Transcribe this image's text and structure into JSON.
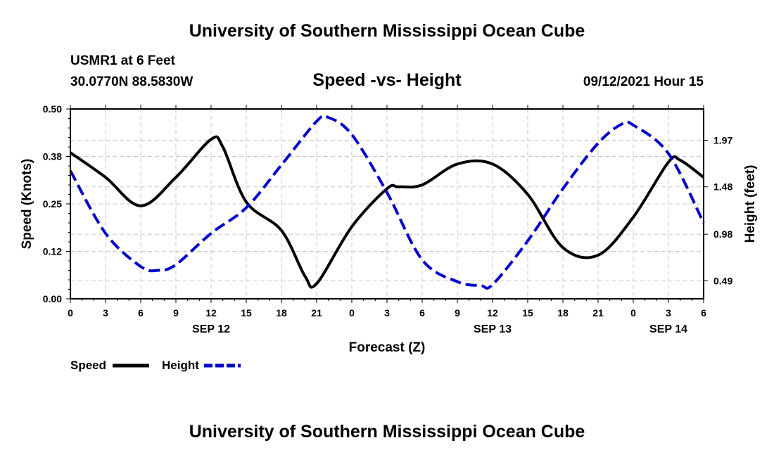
{
  "header": {
    "title": "University of Southern Mississippi Ocean Cube",
    "station": "USMR1 at 6 Feet",
    "coordinates": "30.0770N  88.5830W",
    "datetime": "09/12/2021 Hour 15"
  },
  "footer": {
    "title": "University of Southern Mississippi Ocean Cube"
  },
  "chart_data": {
    "type": "line",
    "title": "Speed -vs- Height",
    "xlabel": "Forecast (Z)",
    "ylabel_left": "Speed (Knots)",
    "ylabel_right": "Height (feet)",
    "x_unit": "hours from 00Z SEP 12",
    "xlim": [
      0,
      54
    ],
    "ylim_left": [
      0,
      0.5
    ],
    "ylim_right": [
      0.3,
      2.3
    ],
    "grid": true,
    "legend_position": "bottom-left",
    "x_ticks": [
      0,
      3,
      6,
      9,
      12,
      15,
      18,
      21,
      24,
      27,
      30,
      33,
      36,
      39,
      42,
      45,
      48,
      51,
      54
    ],
    "x_tick_labels": [
      "0",
      "3",
      "6",
      "9",
      "12",
      "15",
      "18",
      "21",
      "0",
      "3",
      "6",
      "9",
      "12",
      "15",
      "18",
      "21",
      "0",
      "3",
      "6"
    ],
    "date_labels": [
      {
        "x": 12,
        "label": "SEP 12"
      },
      {
        "x": 36,
        "label": "SEP 13"
      },
      {
        "x": 51,
        "label": "SEP 14"
      }
    ],
    "y_left_ticks": [
      0.0,
      0.125,
      0.25,
      0.375,
      0.5
    ],
    "y_left_tick_labels": [
      "0.00",
      "0.12",
      "0.25",
      "0.38",
      "0.50"
    ],
    "y_right_ticks": [
      0.49,
      0.98,
      1.48,
      1.97
    ],
    "y_right_tick_labels": [
      "0.49",
      "0.98",
      "1.48",
      "1.97"
    ],
    "series": [
      {
        "name": "Speed",
        "axis": "left",
        "color": "#000000",
        "style": "solid",
        "x": [
          0,
          3,
          6,
          9,
          12,
          13,
          15,
          18,
          20,
          21,
          24,
          27,
          28,
          30,
          33,
          36,
          39,
          42,
          45,
          48,
          51,
          52,
          54
        ],
        "values": [
          0.385,
          0.32,
          0.245,
          0.32,
          0.42,
          0.4,
          0.255,
          0.18,
          0.06,
          0.04,
          0.19,
          0.29,
          0.295,
          0.3,
          0.355,
          0.355,
          0.275,
          0.135,
          0.115,
          0.215,
          0.36,
          0.365,
          0.32
        ]
      },
      {
        "name": "Height",
        "axis": "right",
        "color": "#0000cc",
        "style": "dashed",
        "x": [
          0,
          3,
          6,
          7.5,
          9,
          12,
          15,
          18,
          21,
          22,
          24,
          27,
          30,
          33,
          35,
          36,
          39,
          42,
          45,
          47,
          48,
          51,
          54
        ],
        "values": [
          1.65,
          0.99,
          0.64,
          0.6,
          0.66,
          0.99,
          1.26,
          1.71,
          2.17,
          2.21,
          2.03,
          1.42,
          0.71,
          0.48,
          0.44,
          0.45,
          0.91,
          1.46,
          1.94,
          2.14,
          2.13,
          1.83,
          1.1
        ]
      }
    ]
  }
}
